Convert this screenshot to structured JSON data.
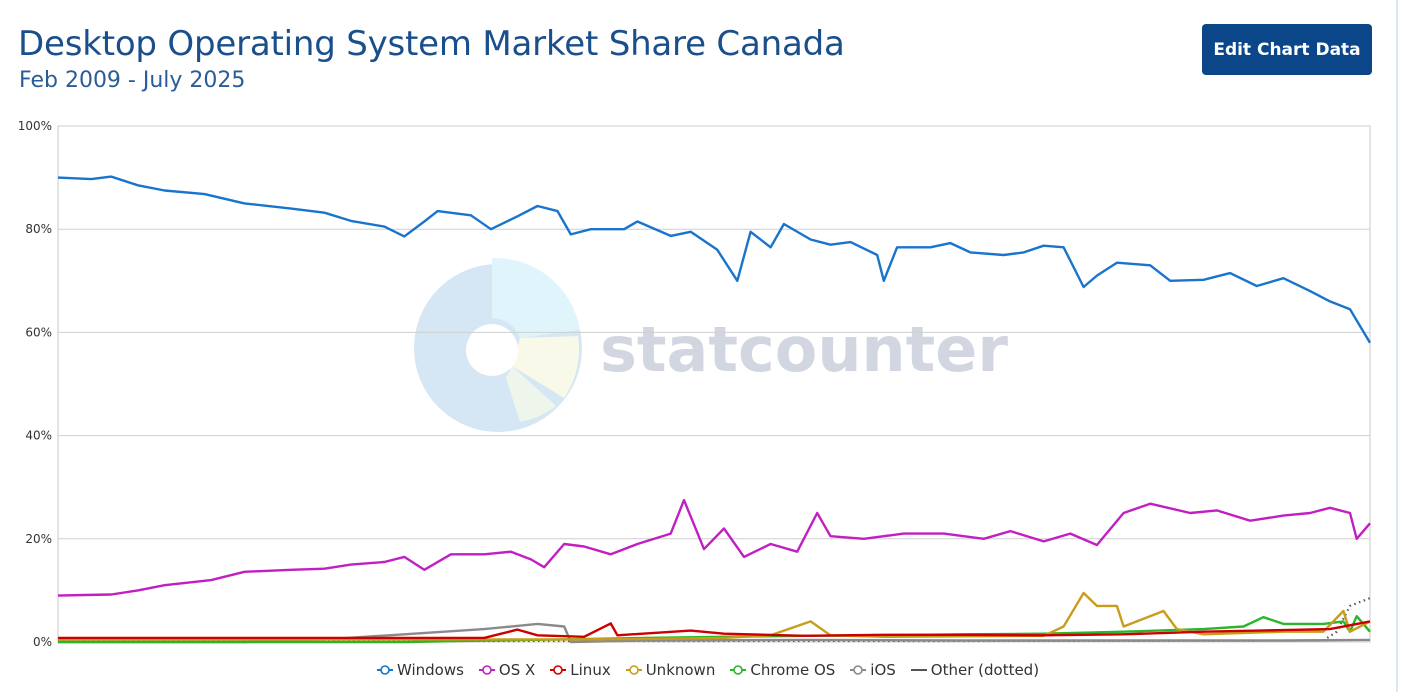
{
  "page": {
    "title": "Desktop Operating System Market Share Canada",
    "subtitle": "Feb 2009 - July 2025",
    "edit_button": "Edit Chart Data",
    "watermark": "statcounter"
  },
  "chart_data": {
    "type": "line",
    "x_range": [
      "2009-02",
      "2025-07"
    ],
    "ylim": [
      0,
      100
    ],
    "yticks": [
      "0%",
      "20%",
      "40%",
      "60%",
      "80%",
      "100%"
    ],
    "grid": true,
    "legend_position": "bottom",
    "series": [
      {
        "name": "Windows",
        "color": "#1874cd",
        "dotted": false,
        "points": [
          [
            "2009-02",
            90
          ],
          [
            "2009-07",
            89.7
          ],
          [
            "2009-10",
            90.2
          ],
          [
            "2010-02",
            88.5
          ],
          [
            "2010-06",
            87.5
          ],
          [
            "2010-12",
            86.8
          ],
          [
            "2011-06",
            85
          ],
          [
            "2012-01",
            84
          ],
          [
            "2012-06",
            83.2
          ],
          [
            "2012-10",
            81.6
          ],
          [
            "2013-03",
            80.5
          ],
          [
            "2013-06",
            78.6
          ],
          [
            "2013-09",
            81.5
          ],
          [
            "2013-11",
            83.5
          ],
          [
            "2014-04",
            82.7
          ],
          [
            "2014-07",
            80
          ],
          [
            "2014-11",
            82.5
          ],
          [
            "2015-02",
            84.5
          ],
          [
            "2015-05",
            83.5
          ],
          [
            "2015-07",
            79
          ],
          [
            "2015-10",
            80
          ],
          [
            "2016-03",
            80
          ],
          [
            "2016-05",
            81.5
          ],
          [
            "2016-10",
            78.7
          ],
          [
            "2017-01",
            79.5
          ],
          [
            "2017-05",
            76
          ],
          [
            "2017-08",
            70
          ],
          [
            "2017-10",
            79.5
          ],
          [
            "2018-01",
            76.5
          ],
          [
            "2018-03",
            81
          ],
          [
            "2018-07",
            78
          ],
          [
            "2018-10",
            77
          ],
          [
            "2019-01",
            77.5
          ],
          [
            "2019-05",
            75
          ],
          [
            "2019-06",
            70
          ],
          [
            "2019-08",
            76.5
          ],
          [
            "2020-01",
            76.5
          ],
          [
            "2020-04",
            77.3
          ],
          [
            "2020-07",
            75.5
          ],
          [
            "2020-12",
            75
          ],
          [
            "2021-03",
            75.5
          ],
          [
            "2021-06",
            76.8
          ],
          [
            "2021-09",
            76.5
          ],
          [
            "2021-12",
            68.8
          ],
          [
            "2022-02",
            71
          ],
          [
            "2022-05",
            73.5
          ],
          [
            "2022-10",
            73
          ],
          [
            "2023-01",
            70
          ],
          [
            "2023-06",
            70.2
          ],
          [
            "2023-10",
            71.5
          ],
          [
            "2024-02",
            69
          ],
          [
            "2024-06",
            70.5
          ],
          [
            "2024-10",
            68
          ],
          [
            "2025-01",
            66
          ],
          [
            "2025-04",
            64.5
          ],
          [
            "2025-07",
            58
          ]
        ]
      },
      {
        "name": "OS X",
        "color": "#c21fc2",
        "dotted": false,
        "points": [
          [
            "2009-02",
            9
          ],
          [
            "2009-06",
            9.1
          ],
          [
            "2009-10",
            9.2
          ],
          [
            "2010-02",
            10
          ],
          [
            "2010-06",
            11
          ],
          [
            "2011-01",
            12
          ],
          [
            "2011-06",
            13.6
          ],
          [
            "2012-01",
            14
          ],
          [
            "2012-06",
            14.2
          ],
          [
            "2012-10",
            15
          ],
          [
            "2013-03",
            15.5
          ],
          [
            "2013-06",
            16.5
          ],
          [
            "2013-09",
            14
          ],
          [
            "2014-01",
            17
          ],
          [
            "2014-06",
            17
          ],
          [
            "2014-10",
            17.5
          ],
          [
            "2015-01",
            16
          ],
          [
            "2015-03",
            14.5
          ],
          [
            "2015-06",
            19
          ],
          [
            "2015-09",
            18.5
          ],
          [
            "2016-01",
            17
          ],
          [
            "2016-05",
            19
          ],
          [
            "2016-10",
            21
          ],
          [
            "2016-12",
            27.5
          ],
          [
            "2017-03",
            18
          ],
          [
            "2017-06",
            22
          ],
          [
            "2017-09",
            16.5
          ],
          [
            "2018-01",
            19
          ],
          [
            "2018-05",
            17.5
          ],
          [
            "2018-08",
            25
          ],
          [
            "2018-10",
            20.5
          ],
          [
            "2019-03",
            20
          ],
          [
            "2019-09",
            21
          ],
          [
            "2020-03",
            21
          ],
          [
            "2020-09",
            20
          ],
          [
            "2021-01",
            21.5
          ],
          [
            "2021-06",
            19.5
          ],
          [
            "2021-10",
            21
          ],
          [
            "2022-02",
            18.8
          ],
          [
            "2022-06",
            25
          ],
          [
            "2022-10",
            26.8
          ],
          [
            "2023-04",
            25
          ],
          [
            "2023-08",
            25.5
          ],
          [
            "2024-01",
            23.5
          ],
          [
            "2024-06",
            24.5
          ],
          [
            "2024-10",
            25
          ],
          [
            "2025-01",
            26
          ],
          [
            "2025-04",
            25
          ],
          [
            "2025-05",
            20
          ],
          [
            "2025-07",
            23
          ]
        ]
      },
      {
        "name": "Linux",
        "color": "#cc0000",
        "dotted": false,
        "points": [
          [
            "2009-02",
            0.8
          ],
          [
            "2010-06",
            0.8
          ],
          [
            "2012-01",
            0.8
          ],
          [
            "2013-06",
            0.8
          ],
          [
            "2014-06",
            0.8
          ],
          [
            "2014-11",
            2.4
          ],
          [
            "2015-02",
            1.3
          ],
          [
            "2015-09",
            1
          ],
          [
            "2016-01",
            3.6
          ],
          [
            "2016-02",
            1.3
          ],
          [
            "2017-01",
            2.2
          ],
          [
            "2017-06",
            1.6
          ],
          [
            "2018-06",
            1.2
          ],
          [
            "2019-06",
            1.4
          ],
          [
            "2020-06",
            1.4
          ],
          [
            "2021-06",
            1.3
          ],
          [
            "2022-06",
            1.5
          ],
          [
            "2023-06",
            2
          ],
          [
            "2024-06",
            2.3
          ],
          [
            "2025-01",
            2.5
          ],
          [
            "2025-07",
            4
          ]
        ]
      },
      {
        "name": "Unknown",
        "color": "#c99d1c",
        "dotted": false,
        "points": [
          [
            "2009-02",
            0.5
          ],
          [
            "2010-06",
            0.5
          ],
          [
            "2011-06",
            0.5
          ],
          [
            "2012-06",
            0.5
          ],
          [
            "2013-06",
            0.5
          ],
          [
            "2014-06",
            0.5
          ],
          [
            "2015-06",
            0.5
          ],
          [
            "2016-06",
            0.6
          ],
          [
            "2017-06",
            0.8
          ],
          [
            "2018-01",
            1.3
          ],
          [
            "2018-07",
            4
          ],
          [
            "2018-10",
            1.3
          ],
          [
            "2019-06",
            1
          ],
          [
            "2020-06",
            1.1
          ],
          [
            "2021-06",
            1.2
          ],
          [
            "2021-09",
            3
          ],
          [
            "2021-12",
            9.5
          ],
          [
            "2022-02",
            7
          ],
          [
            "2022-05",
            7
          ],
          [
            "2022-06",
            3
          ],
          [
            "2022-09",
            4.5
          ],
          [
            "2022-12",
            6
          ],
          [
            "2023-02",
            2.5
          ],
          [
            "2023-06",
            1.5
          ],
          [
            "2024-06",
            2
          ],
          [
            "2024-12",
            2
          ],
          [
            "2025-03",
            6
          ],
          [
            "2025-04",
            2
          ],
          [
            "2025-07",
            4
          ]
        ]
      },
      {
        "name": "Chrome OS",
        "color": "#2ab52a",
        "dotted": false,
        "points": [
          [
            "2009-02",
            0
          ],
          [
            "2011-06",
            0
          ],
          [
            "2013-06",
            0
          ],
          [
            "2014-06",
            0.3
          ],
          [
            "2015-06",
            0.5
          ],
          [
            "2016-06",
            0.8
          ],
          [
            "2017-06",
            1
          ],
          [
            "2018-06",
            1.2
          ],
          [
            "2019-06",
            1.3
          ],
          [
            "2020-06",
            1.5
          ],
          [
            "2021-06",
            1.6
          ],
          [
            "2022-06",
            2
          ],
          [
            "2023-06",
            2.5
          ],
          [
            "2023-12",
            3
          ],
          [
            "2024-03",
            4.8
          ],
          [
            "2024-06",
            3.5
          ],
          [
            "2024-12",
            3.5
          ],
          [
            "2025-03",
            4
          ],
          [
            "2025-04",
            2
          ],
          [
            "2025-05",
            5
          ],
          [
            "2025-07",
            2
          ]
        ]
      },
      {
        "name": "iOS",
        "color": "#8a8a8a",
        "dotted": false,
        "points": [
          [
            "2009-02",
            0
          ],
          [
            "2011-06",
            0
          ],
          [
            "2012-06",
            0.5
          ],
          [
            "2013-06",
            1.5
          ],
          [
            "2014-06",
            2.5
          ],
          [
            "2015-02",
            3.5
          ],
          [
            "2015-06",
            3
          ],
          [
            "2015-07",
            0
          ],
          [
            "2016-06",
            0.3
          ],
          [
            "2018-06",
            0.4
          ],
          [
            "2020-06",
            0.3
          ],
          [
            "2022-06",
            0.3
          ],
          [
            "2024-06",
            0.3
          ],
          [
            "2025-07",
            0.4
          ]
        ]
      },
      {
        "name": "Other (dotted)",
        "color": "#555555",
        "dotted": true,
        "points": [
          [
            "2009-02",
            0.2
          ],
          [
            "2015-06",
            0.2
          ],
          [
            "2020-06",
            0.2
          ],
          [
            "2024-12",
            0.3
          ],
          [
            "2025-02",
            2
          ],
          [
            "2025-04",
            7
          ],
          [
            "2025-07",
            8.5
          ]
        ]
      }
    ],
    "legend": [
      "Windows",
      "OS X",
      "Linux",
      "Unknown",
      "Chrome OS",
      "iOS",
      "Other (dotted)"
    ]
  }
}
